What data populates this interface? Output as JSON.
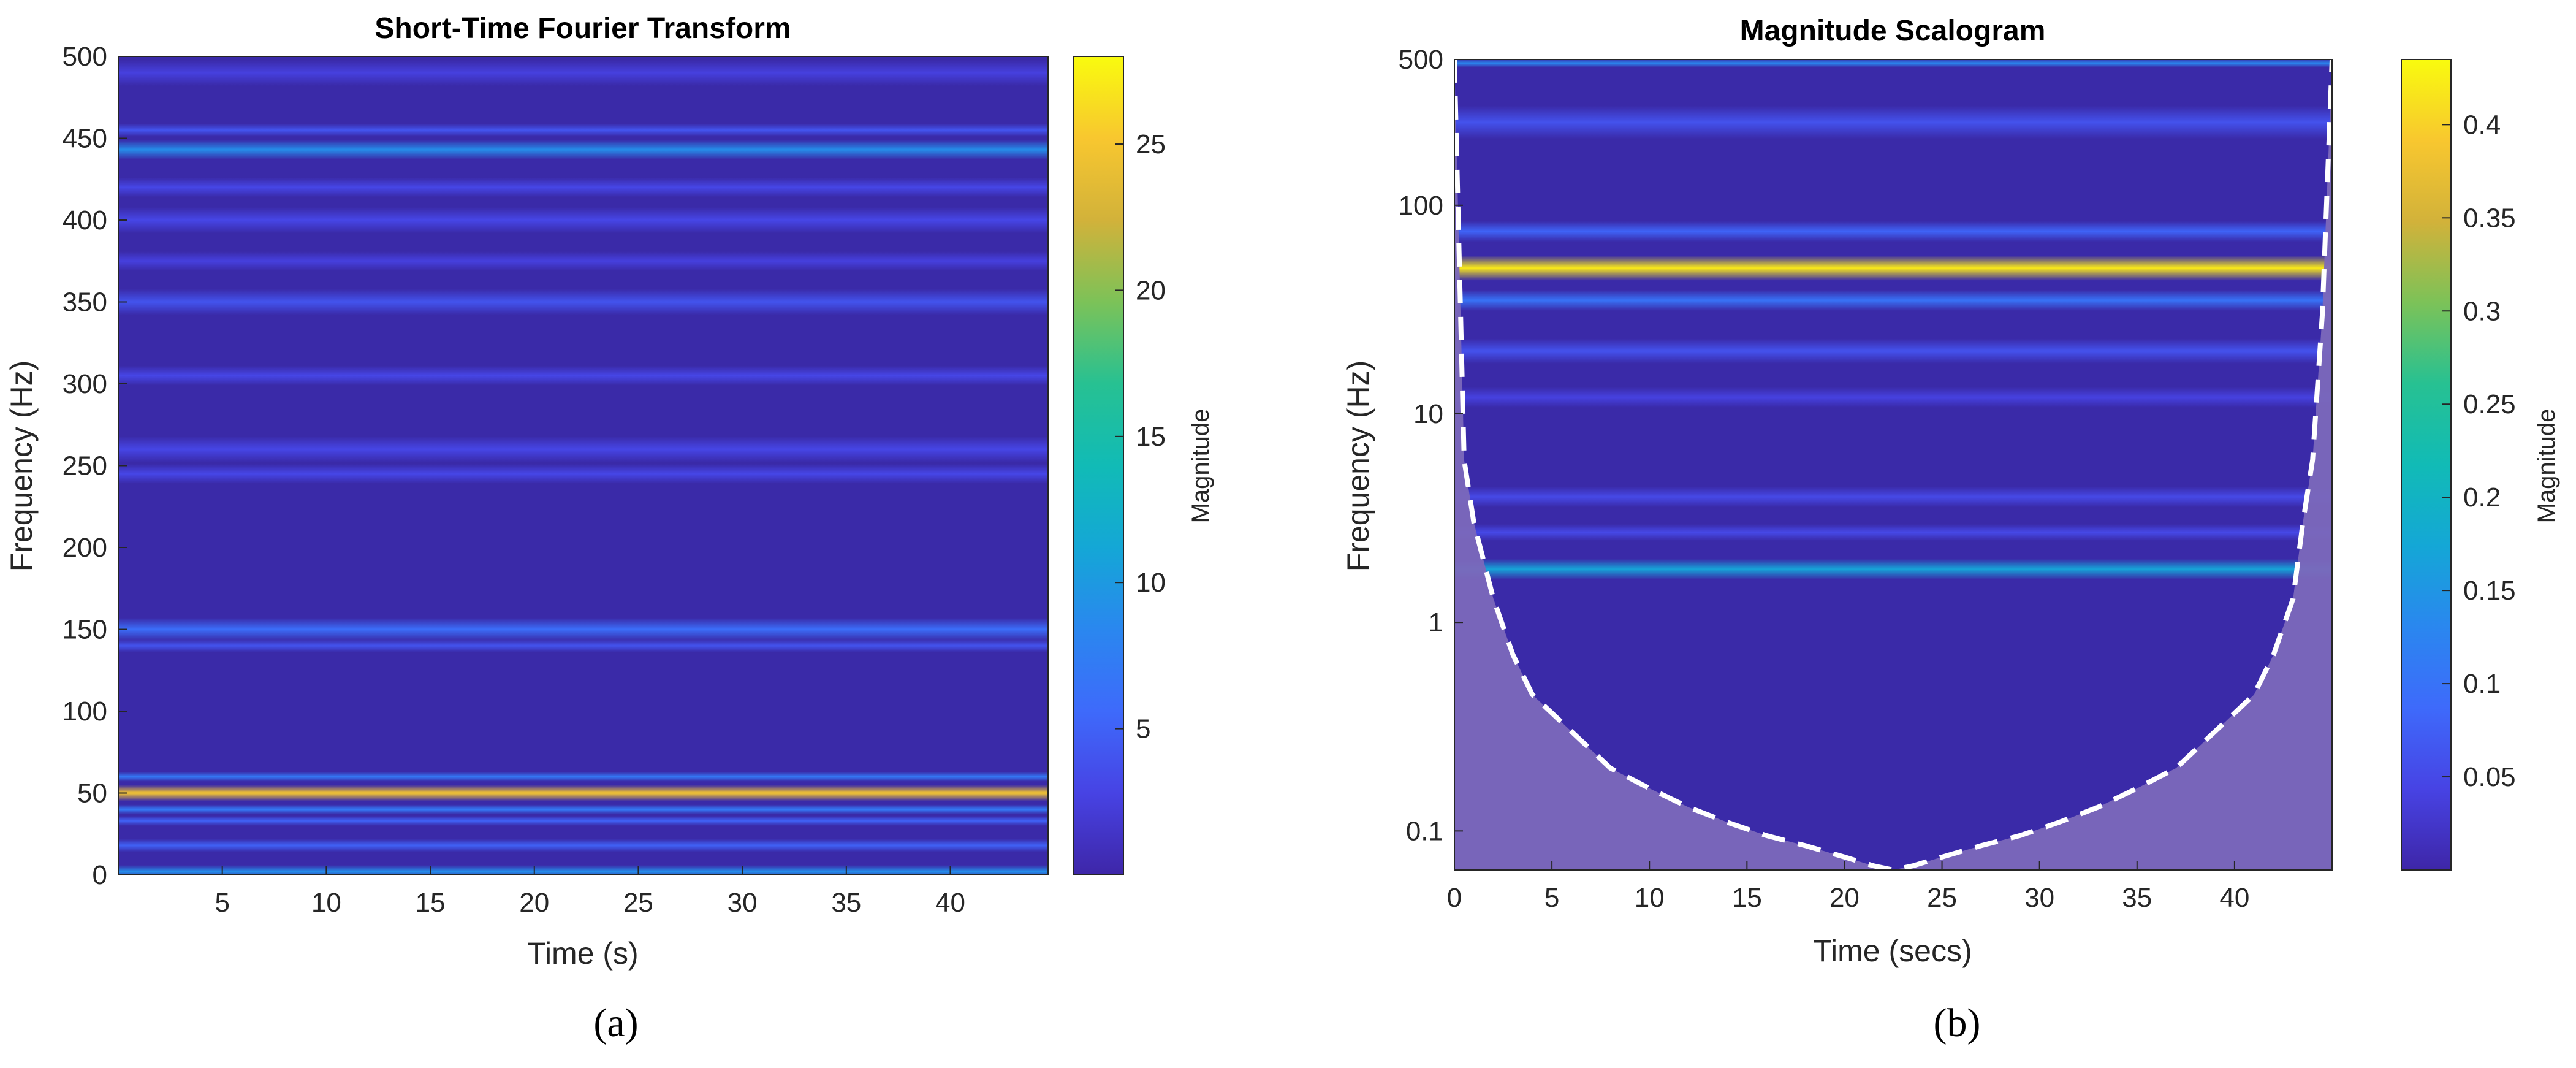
{
  "colors": {
    "background": "#3a2aa8",
    "shade": "#7b68ba",
    "coi_line": "#ffffff"
  },
  "chart_data": [
    {
      "type": "heatmap",
      "panel_label": "(a)",
      "title": "Short-Time Fourier Transform",
      "xlabel": "Time (s)",
      "ylabel": "Frequency (Hz)",
      "xlim": [
        0,
        44.7
      ],
      "ylim": [
        0,
        500
      ],
      "x_ticks": [
        5,
        10,
        15,
        20,
        25,
        30,
        35,
        40
      ],
      "y_ticks": [
        0,
        50,
        100,
        150,
        200,
        250,
        300,
        350,
        400,
        450,
        500
      ],
      "colorbar": {
        "label": "Magnitude",
        "range": [
          0,
          28
        ],
        "ticks": [
          5,
          10,
          15,
          20,
          25
        ]
      },
      "bands": [
        {
          "center": 50,
          "width": 5,
          "magnitude": 25
        },
        {
          "center": 60,
          "width": 3,
          "magnitude": 7
        },
        {
          "center": 40,
          "width": 3,
          "magnitude": 7
        },
        {
          "center": 33,
          "width": 3,
          "magnitude": 5
        },
        {
          "center": 18,
          "width": 4,
          "magnitude": 5
        },
        {
          "center": 2,
          "width": 4,
          "magnitude": 9
        },
        {
          "center": 150,
          "width": 7,
          "magnitude": 6
        },
        {
          "center": 140,
          "width": 4,
          "magnitude": 4
        },
        {
          "center": 443,
          "width": 6,
          "magnitude": 9
        },
        {
          "center": 455,
          "width": 4,
          "magnitude": 4
        },
        {
          "center": 350,
          "width": 8,
          "magnitude": 4
        },
        {
          "center": 305,
          "width": 6,
          "magnitude": 3
        },
        {
          "center": 260,
          "width": 8,
          "magnitude": 3
        },
        {
          "center": 245,
          "width": 6,
          "magnitude": 3
        },
        {
          "center": 400,
          "width": 8,
          "magnitude": 3
        },
        {
          "center": 420,
          "width": 6,
          "magnitude": 3
        },
        {
          "center": 375,
          "width": 6,
          "magnitude": 2.5
        },
        {
          "center": 490,
          "width": 8,
          "magnitude": 2.5
        }
      ]
    },
    {
      "type": "heatmap",
      "panel_label": "(b)",
      "title": "Magnitude Scalogram",
      "xlabel": "Time (secs)",
      "ylabel": "Frequency (Hz)",
      "xlim": [
        0,
        45
      ],
      "ylim": [
        0.065,
        500
      ],
      "yscale": "log",
      "x_ticks": [
        0,
        5,
        10,
        15,
        20,
        25,
        30,
        35,
        40
      ],
      "y_ticks": [
        0.1,
        1,
        10,
        100,
        500
      ],
      "colorbar": {
        "label": "Magnitude",
        "range": [
          0,
          0.435
        ],
        "ticks": [
          0.05,
          0.1,
          0.15,
          0.2,
          0.25,
          0.3,
          0.35,
          0.4
        ]
      },
      "bands": [
        {
          "center": 50,
          "width": 0.06,
          "magnitude": 0.42
        },
        {
          "center": 35,
          "width": 0.05,
          "magnitude": 0.1
        },
        {
          "center": 75,
          "width": 0.05,
          "magnitude": 0.08
        },
        {
          "center": 1.8,
          "width": 0.05,
          "magnitude": 0.17
        },
        {
          "center": 20,
          "width": 0.06,
          "magnitude": 0.06
        },
        {
          "center": 12,
          "width": 0.05,
          "magnitude": 0.04
        },
        {
          "center": 4,
          "width": 0.05,
          "magnitude": 0.05
        },
        {
          "center": 2.7,
          "width": 0.04,
          "magnitude": 0.05
        },
        {
          "center": 250,
          "width": 0.08,
          "magnitude": 0.06
        },
        {
          "center": 480,
          "width": 0.02,
          "magnitude": 0.13
        }
      ],
      "cone_of_influence": {
        "t": [
          0,
          0.5,
          1,
          2,
          3,
          4,
          6,
          8,
          10,
          12,
          14,
          16,
          18,
          20,
          21.5,
          22.5,
          23.5,
          25,
          27,
          29,
          31,
          33,
          35,
          37,
          39,
          41,
          42,
          43,
          43.5,
          44,
          44.5,
          45
        ],
        "f": [
          500,
          6,
          3,
          1.3,
          0.7,
          0.45,
          0.3,
          0.2,
          0.16,
          0.13,
          0.11,
          0.095,
          0.085,
          0.075,
          0.068,
          0.065,
          0.068,
          0.075,
          0.085,
          0.095,
          0.11,
          0.13,
          0.16,
          0.2,
          0.3,
          0.45,
          0.7,
          1.3,
          3,
          6,
          30,
          500
        ]
      }
    }
  ]
}
